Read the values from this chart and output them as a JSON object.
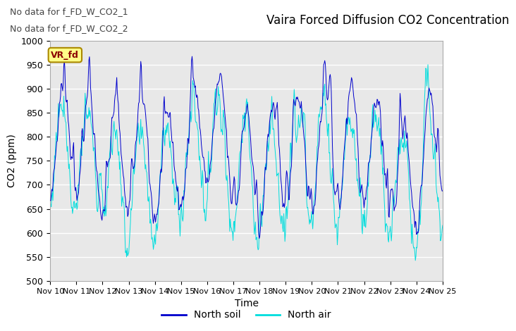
{
  "title": "Vaira Forced Diffusion CO2 Concentration",
  "xlabel": "Time",
  "ylabel": "CO2 (ppm)",
  "ylim": [
    500,
    1000
  ],
  "xlim_days": [
    0,
    15
  ],
  "x_tick_labels": [
    "Nov 10",
    "Nov 11",
    "Nov 12",
    "Nov 13",
    "Nov 14",
    "Nov 15",
    "Nov 16",
    "Nov 17",
    "Nov 18",
    "Nov 19",
    "Nov 20",
    "Nov 21",
    "Nov 22",
    "Nov 23",
    "Nov 24",
    "Nov 25"
  ],
  "line1_color": "#0000CC",
  "line2_color": "#00DDDD",
  "line1_label": "North soil",
  "line2_label": "North air",
  "legend_box_label": "VR_fd",
  "annotation1": "No data for f_FD_W_CO2_1",
  "annotation2": "No data for f_FD_W_CO2_2",
  "plot_bg_color": "#E8E8E8",
  "fig_bg_color": "#FFFFFF",
  "grid_color": "#FFFFFF",
  "yticks": [
    500,
    550,
    600,
    650,
    700,
    750,
    800,
    850,
    900,
    950,
    1000
  ],
  "title_fontsize": 12,
  "label_fontsize": 10,
  "tick_fontsize": 9,
  "annotation_fontsize": 9
}
